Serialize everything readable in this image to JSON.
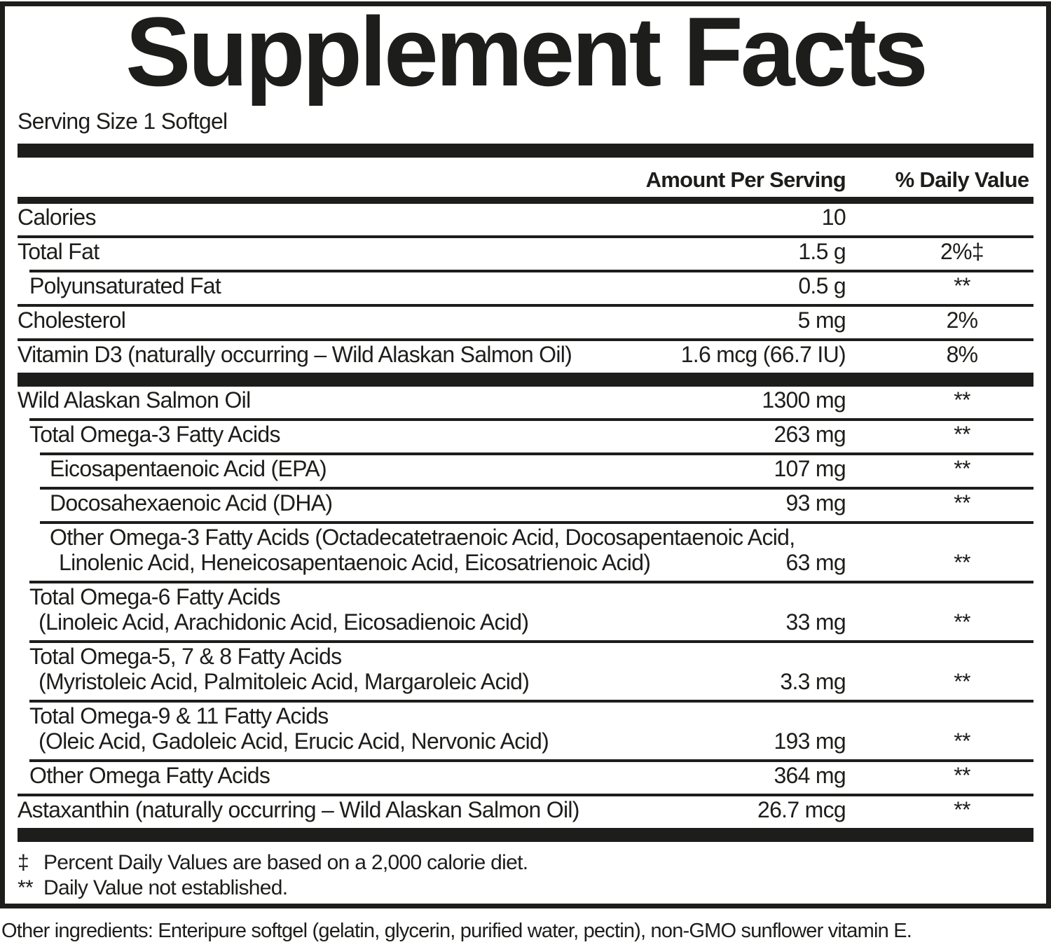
{
  "colors": {
    "ink": "#1d1d1b",
    "background": "#ffffff"
  },
  "title": "Supplement Facts",
  "serving_size": "Serving Size 1 Softgel",
  "columns": {
    "amount_header": "Amount Per Serving",
    "dv_header": "% Daily Value"
  },
  "rows": [
    {
      "name": "Calories",
      "amount": "10",
      "dv": "",
      "indent": 0
    },
    {
      "name": "Total Fat",
      "amount": "1.5 g",
      "dv": "2%‡",
      "indent": 0
    },
    {
      "name": "Polyunsaturated Fat",
      "amount": "0.5 g",
      "dv": "**",
      "indent": 1
    },
    {
      "name": "Cholesterol",
      "amount": "5 mg",
      "dv": "2%",
      "indent": 0
    },
    {
      "name": "Vitamin D3 (naturally occurring – Wild Alaskan Salmon Oil)",
      "amount": "1.6 mcg (66.7 IU)",
      "dv": "8%",
      "indent": 0
    },
    {
      "name": "Wild Alaskan Salmon Oil",
      "amount": "1300 mg",
      "dv": "**",
      "indent": 0
    },
    {
      "name": "Total Omega-3 Fatty Acids",
      "amount": "263 mg",
      "dv": "**",
      "indent": 1
    },
    {
      "name": "Eicosapentaenoic Acid (EPA)",
      "amount": "107 mg",
      "dv": "**",
      "indent": 2
    },
    {
      "name": "Docosahexaenoic Acid (DHA)",
      "amount": "93 mg",
      "dv": "**",
      "indent": 2
    },
    {
      "name": "Other Omega-3 Fatty Acids (Octadecatetraenoic Acid, Docosapentaenoic Acid,",
      "name2": "Linolenic Acid, Heneicosapentaenoic Acid, Eicosatrienoic Acid)",
      "amount": "63 mg",
      "dv": "**",
      "indent": 2
    },
    {
      "name": "Total Omega-6 Fatty Acids",
      "name2": "(Linoleic Acid, Arachidonic Acid, Eicosadienoic Acid)",
      "amount": "33 mg",
      "dv": "**",
      "indent": 1
    },
    {
      "name": "Total Omega-5, 7 & 8 Fatty Acids",
      "name2": "(Myristoleic Acid, Palmitoleic Acid, Margaroleic Acid)",
      "amount": "3.3 mg",
      "dv": "**",
      "indent": 1
    },
    {
      "name": "Total Omega-9 & 11 Fatty Acids",
      "name2": "(Oleic Acid, Gadoleic Acid, Erucic Acid, Nervonic Acid)",
      "amount": "193 mg",
      "dv": "**",
      "indent": 1
    },
    {
      "name": "Other Omega Fatty Acids",
      "amount": "364 mg",
      "dv": "**",
      "indent": 1
    },
    {
      "name": "Astaxanthin (naturally occurring – Wild Alaskan Salmon Oil)",
      "amount": "26.7 mcg",
      "dv": "**",
      "indent": 0
    }
  ],
  "footnotes": [
    {
      "symbol": "‡",
      "text": "Percent Daily Values are based on a 2,000 calorie diet."
    },
    {
      "symbol": "**",
      "text": "Daily Value not established."
    }
  ],
  "other_ingredients": "Other ingredients: Enteripure softgel (gelatin, glycerin, purified water, pectin), non-GMO sunflower vitamin E."
}
